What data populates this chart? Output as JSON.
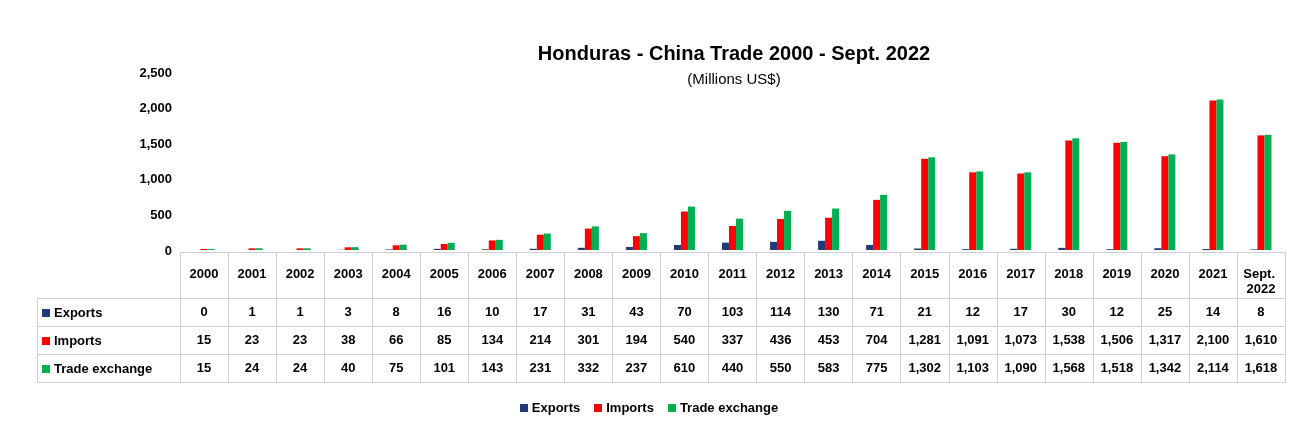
{
  "chart_data": {
    "type": "bar",
    "title": "Honduras - China Trade 2000 - Sept. 2022",
    "subtitle": "(Millions US$)",
    "categories": [
      "2000",
      "2001",
      "2002",
      "2003",
      "2004",
      "2005",
      "2006",
      "2007",
      "2008",
      "2009",
      "2010",
      "2011",
      "2012",
      "2013",
      "2014",
      "2015",
      "2016",
      "2017",
      "2018",
      "2019",
      "2020",
      "2021",
      "Sept. 2022"
    ],
    "series": [
      {
        "name": "Exports",
        "color": "#1f3a7a",
        "values": [
          0,
          1,
          1,
          3,
          8,
          16,
          10,
          17,
          31,
          43,
          70,
          103,
          114,
          130,
          71,
          21,
          12,
          17,
          30,
          12,
          25,
          14,
          8
        ],
        "value_labels": [
          "0",
          "1",
          "1",
          "3",
          "8",
          "16",
          "10",
          "17",
          "31",
          "43",
          "70",
          "103",
          "114",
          "130",
          "71",
          "21",
          "12",
          "17",
          "30",
          "12",
          "25",
          "14",
          "8"
        ]
      },
      {
        "name": "Imports",
        "color": "#ff0000",
        "values": [
          15,
          23,
          23,
          38,
          66,
          85,
          134,
          214,
          301,
          194,
          540,
          337,
          436,
          453,
          704,
          1281,
          1091,
          1073,
          1538,
          1506,
          1317,
          2100,
          1610
        ],
        "value_labels": [
          "15",
          "23",
          "23",
          "38",
          "66",
          "85",
          "134",
          "214",
          "301",
          "194",
          "540",
          "337",
          "436",
          "453",
          "704",
          "1,281",
          "1,091",
          "1,073",
          "1,538",
          "1,506",
          "1,317",
          "2,100",
          "1,610"
        ]
      },
      {
        "name": "Trade exchange",
        "color": "#00b050",
        "values": [
          15,
          24,
          24,
          40,
          75,
          101,
          143,
          231,
          332,
          237,
          610,
          440,
          550,
          583,
          775,
          1302,
          1103,
          1090,
          1568,
          1518,
          1342,
          2114,
          1618
        ],
        "value_labels": [
          "15",
          "24",
          "24",
          "40",
          "75",
          "101",
          "143",
          "231",
          "332",
          "237",
          "610",
          "440",
          "550",
          "583",
          "775",
          "1,302",
          "1,103",
          "1,090",
          "1,568",
          "1,518",
          "1,342",
          "2,114",
          "1,618"
        ]
      }
    ],
    "ylim": [
      0,
      2500
    ],
    "yticks": [
      0,
      500,
      {
        "value": 1000,
        "label": "1,000"
      },
      {
        "value": 1500,
        "label": "1,500"
      },
      {
        "value": 2000,
        "label": "2,000"
      },
      {
        "value": 2500,
        "label": "2,500"
      }
    ],
    "grid": false,
    "legend": "bottom"
  }
}
